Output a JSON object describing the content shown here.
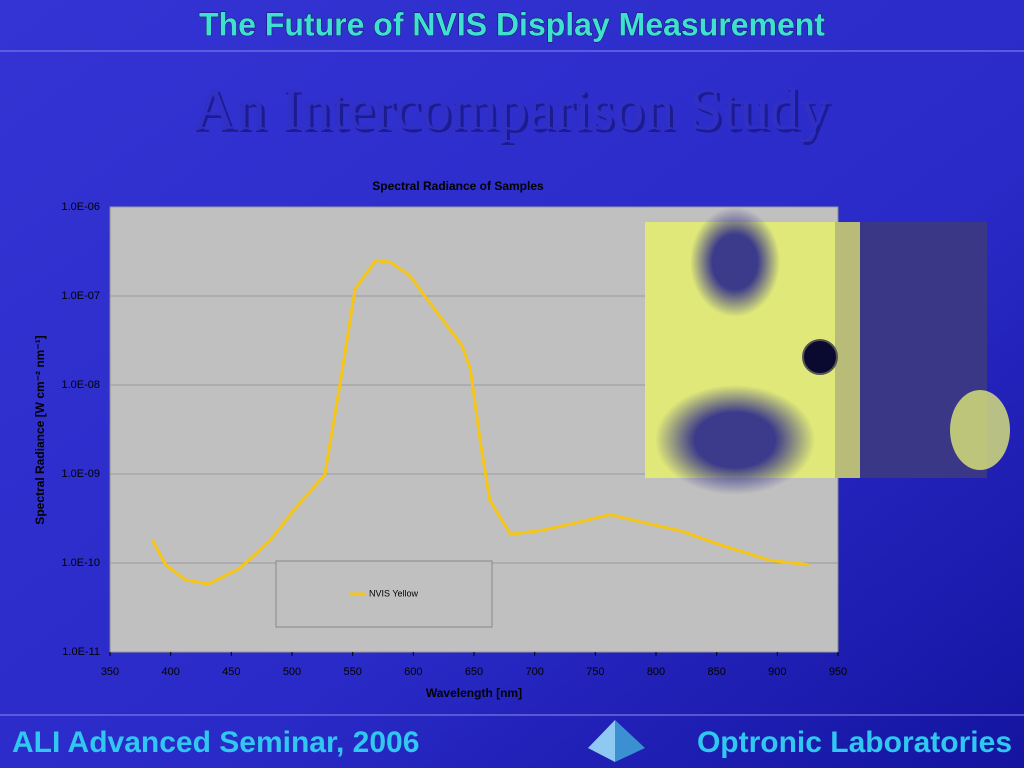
{
  "header": {
    "title": "The Future of NVIS Display Measurement",
    "subtitle": "An Intercomparison Study"
  },
  "chart_data": {
    "type": "line",
    "title": "Spectral Radiance of Samples",
    "x_label": "Wavelength [nm]",
    "y_label": "Spectral Radiance [W cm⁻² nm⁻¹]",
    "yscale": "log",
    "grid": true,
    "legend": "bottom-left",
    "x": [
      385,
      396,
      412,
      431,
      457,
      482,
      502,
      527,
      540,
      552,
      569,
      581,
      597,
      618,
      640,
      647,
      655,
      663,
      680,
      704,
      733,
      762,
      787,
      820,
      853,
      894,
      927
    ],
    "series": [
      {
        "name": "NVIS Yellow",
        "color": "#f5c518",
        "values": [
          1.8e-10,
          9.5e-11,
          6.5e-11,
          5.8e-11,
          8.7e-11,
          1.8e-10,
          4e-10,
          9.8e-10,
          1.1e-08,
          1.2e-07,
          2.5e-07,
          2.4e-07,
          1.7e-07,
          6.9e-08,
          2.8e-08,
          1.5e-08,
          2.4e-09,
          5.1e-10,
          2.1e-10,
          2.3e-10,
          2.8e-10,
          3.5e-10,
          2.9e-10,
          2.3e-10,
          1.6e-10,
          1.07e-10,
          9.5e-11
        ]
      }
    ],
    "xlim": [
      350,
      950
    ],
    "xticks": [
      350,
      400,
      450,
      500,
      550,
      600,
      650,
      700,
      750,
      800,
      850,
      900,
      950
    ],
    "ylim": [
      1e-11,
      1e-06
    ],
    "yticks": [
      {
        "value": 1e-11,
        "label": "1.0E-11"
      },
      {
        "value": 1e-10,
        "label": "1.0E-10"
      },
      {
        "value": 1e-09,
        "label": "1.0E-09"
      },
      {
        "value": 1e-08,
        "label": "1.0E-08"
      },
      {
        "value": 1e-07,
        "label": "1.0E-07"
      },
      {
        "value": 1e-06,
        "label": "1.0E-06"
      }
    ]
  },
  "footer": {
    "left": "ALI Advanced Seminar, 2006",
    "right": "Optronic Laboratories"
  }
}
